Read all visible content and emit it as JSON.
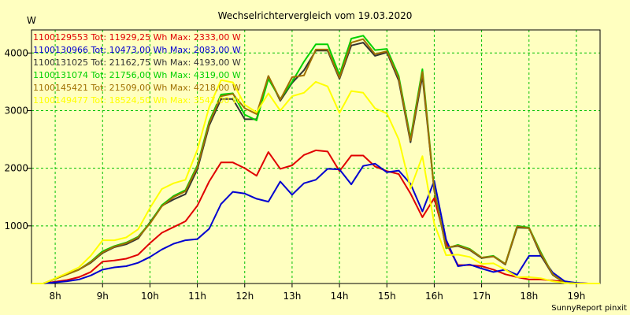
{
  "chart_data": {
    "type": "line",
    "title": "Wechselrichtervergleich vom 19.03.2020",
    "ylabel": "W",
    "xlabel": "",
    "footer": "SunnyReport pinxit",
    "ylim": [
      0,
      4400
    ],
    "xlim": [
      7.5,
      19.5
    ],
    "grid": true,
    "yticks": [
      1000,
      2000,
      3000,
      4000
    ],
    "yticklabels": [
      "1000",
      "2000",
      "3000",
      "4000"
    ],
    "xticks": [
      8,
      9,
      10,
      11,
      12,
      13,
      14,
      15,
      16,
      17,
      18,
      19
    ],
    "xticklabels": [
      "8h",
      "9h",
      "10h",
      "11h",
      "12h",
      "13h",
      "14h",
      "15h",
      "16h",
      "17h",
      "18h",
      "19h"
    ],
    "legend_position": "top-left",
    "x": [
      7.5,
      7.75,
      8.0,
      8.25,
      8.5,
      8.75,
      9.0,
      9.25,
      9.5,
      9.75,
      10.0,
      10.25,
      10.5,
      10.75,
      11.0,
      11.25,
      11.5,
      11.75,
      12.0,
      12.25,
      12.5,
      12.75,
      13.0,
      13.25,
      13.5,
      13.75,
      14.0,
      14.25,
      14.5,
      14.75,
      15.0,
      15.25,
      15.5,
      15.75,
      16.0,
      16.25,
      16.5,
      16.75,
      17.0,
      17.25,
      17.5,
      17.75,
      18.0,
      18.25,
      18.5,
      18.75,
      19.0,
      19.25,
      19.5
    ],
    "series": [
      {
        "name": "1100129553 Tot: 11929,25 Wh Max: 2333,00 W",
        "color": "#e00000",
        "values": [
          0,
          0,
          30,
          60,
          110,
          200,
          380,
          400,
          430,
          500,
          700,
          880,
          980,
          1080,
          1350,
          1770,
          2100,
          2100,
          2000,
          1870,
          2280,
          1990,
          2050,
          2230,
          2310,
          2290,
          1950,
          2220,
          2220,
          2030,
          1950,
          1900,
          1560,
          1150,
          1480,
          700,
          320,
          320,
          300,
          240,
          160,
          110,
          70,
          70,
          50,
          30,
          10,
          0,
          0
        ]
      },
      {
        "name": "1100130966 Tot: 10473,00 Wh Max: 2083,00 W",
        "color": "#0000d0",
        "values": [
          0,
          0,
          20,
          40,
          70,
          140,
          240,
          280,
          300,
          360,
          460,
          590,
          690,
          750,
          770,
          950,
          1380,
          1590,
          1560,
          1470,
          1420,
          1770,
          1540,
          1740,
          1800,
          1990,
          1980,
          1720,
          2040,
          2080,
          1930,
          1960,
          1730,
          1250,
          1780,
          760,
          300,
          330,
          260,
          200,
          240,
          150,
          480,
          480,
          190,
          40,
          10,
          0,
          0
        ]
      },
      {
        "name": "1100131025 Tot: 21162,75 Wh Max: 4193,00 W",
        "color": "#333333",
        "values": [
          0,
          0,
          80,
          160,
          240,
          360,
          530,
          630,
          680,
          780,
          1060,
          1350,
          1460,
          1550,
          1980,
          2740,
          3200,
          3200,
          2850,
          2850,
          3600,
          3170,
          3480,
          3700,
          4040,
          4040,
          3550,
          4130,
          4180,
          3950,
          4010,
          3520,
          2450,
          3600,
          1620,
          620,
          650,
          580,
          440,
          470,
          330,
          970,
          960,
          490,
          150,
          10,
          0,
          0,
          0
        ]
      },
      {
        "name": "1100131074 Tot: 21756,00 Wh Max: 4319,00 W",
        "color": "#00d000",
        "values": [
          0,
          0,
          80,
          160,
          240,
          380,
          560,
          650,
          710,
          810,
          1050,
          1360,
          1520,
          1620,
          2050,
          2810,
          3280,
          3300,
          2930,
          2830,
          3550,
          3200,
          3500,
          3850,
          4150,
          4150,
          3620,
          4250,
          4300,
          4050,
          4070,
          3600,
          2520,
          3720,
          1630,
          610,
          670,
          600,
          450,
          480,
          340,
          1000,
          970,
          540,
          160,
          10,
          0,
          0,
          0
        ]
      },
      {
        "name": "1100145421 Tot: 21509,00 Wh Max: 4218,00 W",
        "color": "#a07000",
        "values": [
          0,
          0,
          80,
          160,
          240,
          370,
          540,
          640,
          700,
          800,
          1040,
          1340,
          1500,
          1600,
          2020,
          2780,
          3250,
          3290,
          3040,
          2940,
          3600,
          3190,
          3580,
          3610,
          4060,
          4060,
          3570,
          4180,
          4240,
          3980,
          4030,
          3560,
          2480,
          3670,
          1610,
          620,
          660,
          590,
          450,
          470,
          340,
          990,
          960,
          520,
          160,
          10,
          0,
          0,
          0
        ]
      },
      {
        "name": "1100149477 Tot: 18524,50 Wh Max: 3547,00 W",
        "color": "#ffff00",
        "values": [
          0,
          0,
          90,
          180,
          280,
          480,
          750,
          750,
          800,
          940,
          1310,
          1640,
          1740,
          1800,
          2320,
          3060,
          3530,
          3490,
          3100,
          2970,
          3300,
          3000,
          3250,
          3310,
          3500,
          3420,
          2960,
          3340,
          3310,
          3040,
          2950,
          2500,
          1650,
          2210,
          1040,
          490,
          500,
          460,
          340,
          350,
          240,
          110,
          110,
          90,
          40,
          10,
          0,
          0,
          0
        ]
      }
    ]
  }
}
